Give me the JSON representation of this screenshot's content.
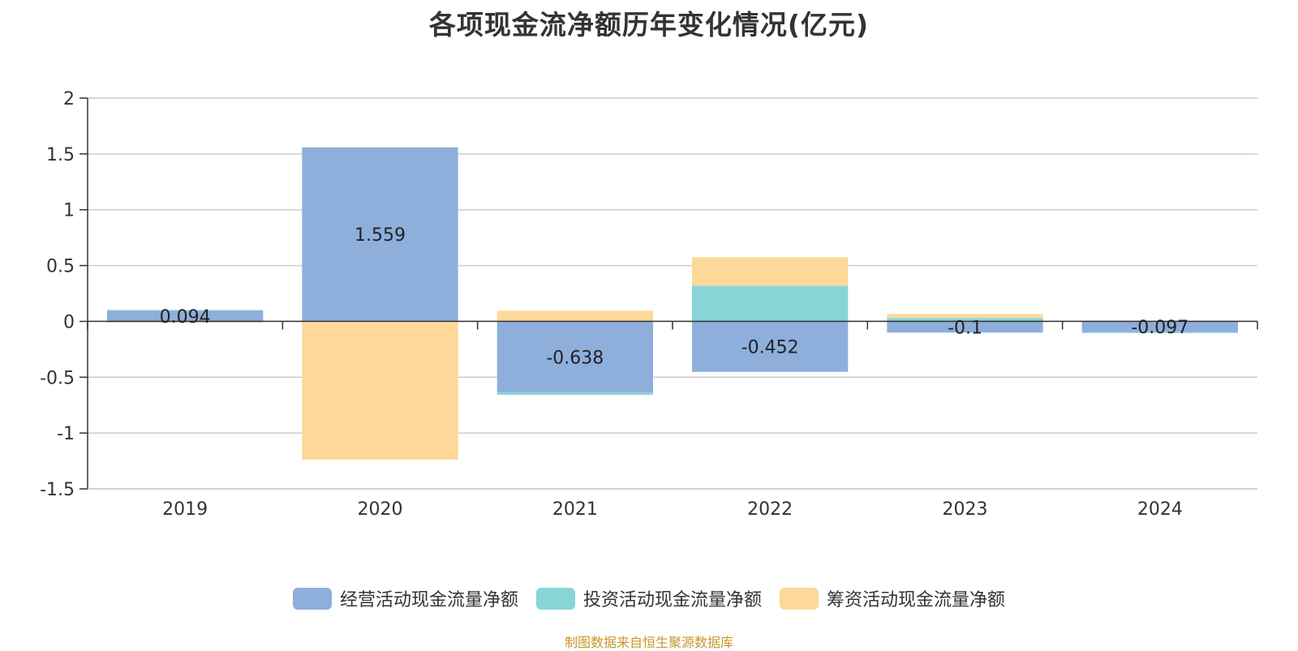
{
  "chart_data": {
    "type": "bar",
    "stacked": true,
    "title": "各项现金流净额历年变化情况(亿元)",
    "categories": [
      "2019",
      "2020",
      "2021",
      "2022",
      "2023",
      "2024"
    ],
    "series": [
      {
        "name": "经营活动现金流量净额",
        "color": "#8eaedc",
        "values": [
          0.094,
          1.559,
          -0.638,
          -0.452,
          -0.1,
          -0.097
        ],
        "labels": [
          "0.094",
          "1.559",
          "-0.638",
          "-0.452",
          "-0.1",
          "-0.097"
        ]
      },
      {
        "name": "投资活动现金流量净额",
        "color": "#88d5d8",
        "values": [
          0.008,
          -0.003,
          -0.02,
          0.32,
          0.03,
          -0.004
        ]
      },
      {
        "name": "筹资活动现金流量净额",
        "color": "#fdd898",
        "values": [
          -0.012,
          -1.235,
          0.095,
          0.255,
          0.035,
          0.007
        ]
      }
    ],
    "yticks": [
      2,
      1.5,
      1,
      0.5,
      0,
      -0.5,
      -1,
      -1.5
    ],
    "ylim": [
      -1.5,
      2
    ],
    "grid": true,
    "legend_position": "bottom"
  },
  "source": "制图数据来自恒生聚源数据库"
}
